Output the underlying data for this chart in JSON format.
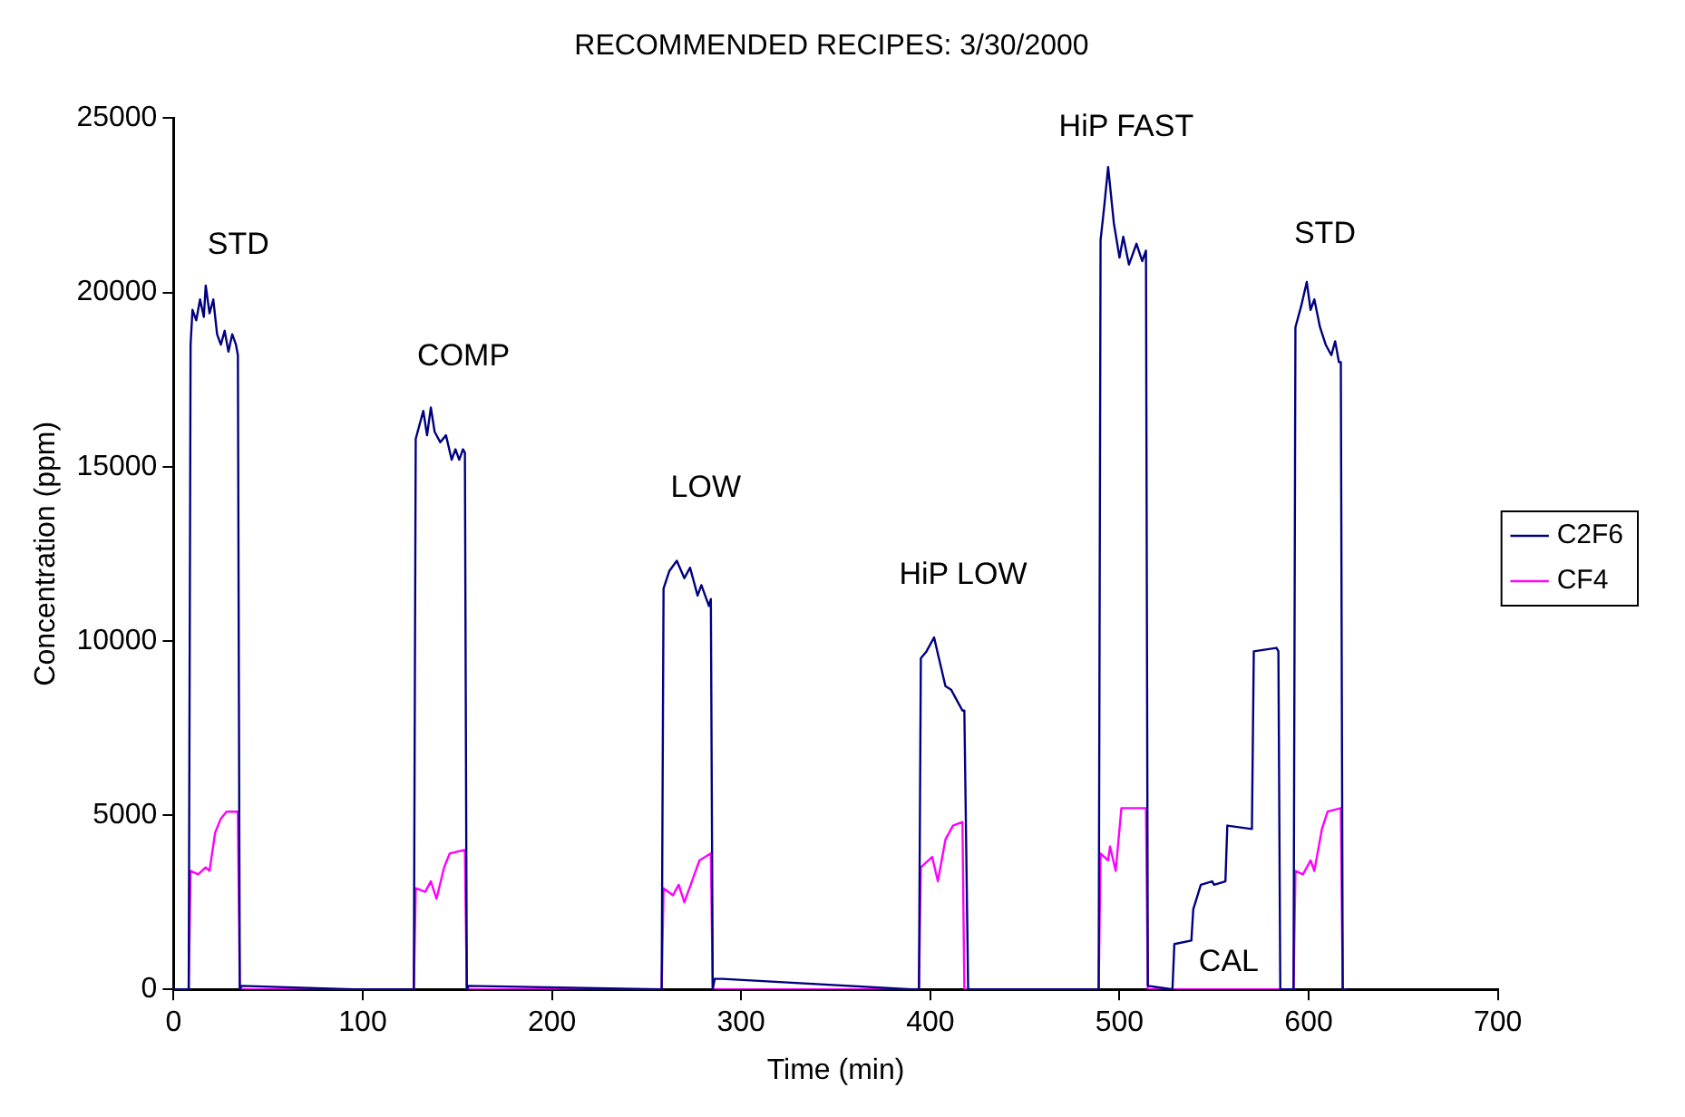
{
  "chart_data": {
    "type": "line",
    "title": "RECOMMENDED RECIPES: 3/30/2000",
    "xlabel": "Time (min)",
    "ylabel": "Concentration (ppm)",
    "xlim": [
      0,
      700
    ],
    "xticks": [
      0,
      100,
      200,
      300,
      400,
      500,
      600,
      700
    ],
    "ylim": [
      0,
      25000
    ],
    "yticks": [
      0,
      5000,
      10000,
      15000,
      20000,
      25000
    ],
    "grid": false,
    "legend": "right",
    "marker": "none",
    "line_style": "solid",
    "annotations": [
      {
        "text": "STD",
        "x": 17,
        "y": 20200
      },
      {
        "text": "COMP",
        "x": 136,
        "y": 16700
      },
      {
        "text": "LOW",
        "x": 266,
        "y": 12300
      },
      {
        "text": "HiP LOW",
        "x": 402,
        "y": 10100
      },
      {
        "text": "HiP FAST",
        "x": 494,
        "y": 23600
      },
      {
        "text": "CAL",
        "x": 529,
        "y": 1300
      },
      {
        "text": "STD",
        "x": 599,
        "y": 20300
      }
    ],
    "series": [
      {
        "name": "C2F6",
        "color": "#000080",
        "x": [
          0,
          5,
          6,
          8,
          9,
          10,
          12,
          14,
          16,
          17,
          19,
          21,
          23,
          25,
          27,
          29,
          31,
          33,
          34,
          35,
          36,
          95,
          98,
          101,
          127,
          128,
          130,
          132,
          134,
          136,
          138,
          141,
          144,
          147,
          149,
          151,
          153,
          154,
          155,
          156,
          257,
          258,
          259,
          262,
          266,
          270,
          273,
          277,
          279,
          283,
          284,
          285,
          286,
          290,
          390,
          393,
          394,
          395,
          398,
          402,
          405,
          408,
          411,
          415,
          417,
          418,
          420,
          485,
          488,
          489,
          490,
          492,
          494,
          497,
          500,
          502,
          505,
          509,
          512,
          514,
          515,
          528,
          529,
          538,
          539,
          543,
          549,
          550,
          556,
          557,
          570,
          571,
          583,
          584,
          585,
          590,
          591,
          592,
          593,
          596,
          599,
          601,
          603,
          606,
          609,
          612,
          614,
          616,
          617,
          618,
          620
        ],
        "values": [
          0,
          0,
          0,
          0,
          18500,
          19500,
          19200,
          19800,
          19300,
          20200,
          19400,
          19800,
          18800,
          18500,
          18900,
          18300,
          18800,
          18500,
          18200,
          0,
          100,
          0,
          0,
          0,
          0,
          15800,
          16200,
          16600,
          15900,
          16700,
          16000,
          15700,
          15900,
          15200,
          15500,
          15200,
          15500,
          15400,
          0,
          100,
          0,
          0,
          11500,
          12000,
          12300,
          11800,
          12100,
          11300,
          11600,
          11000,
          11200,
          0,
          300,
          300,
          0,
          0,
          0,
          9500,
          9700,
          10100,
          9400,
          8700,
          8600,
          8200,
          8000,
          8000,
          0,
          0,
          0,
          0,
          21500,
          22500,
          23600,
          22000,
          21000,
          21600,
          20800,
          21400,
          20900,
          21200,
          100,
          0,
          1300,
          1400,
          2300,
          3000,
          3100,
          3000,
          3100,
          4700,
          4600,
          9700,
          9800,
          9700,
          0,
          0,
          0,
          0,
          19000,
          19600,
          20300,
          19500,
          19800,
          19000,
          18500,
          18200,
          18600,
          18000,
          18000,
          0,
          0
        ]
      },
      {
        "name": "CF4",
        "color": "#ff00ff",
        "x": [
          0,
          8,
          9,
          13,
          17,
          19,
          22,
          25,
          28,
          34,
          35,
          127,
          128,
          133,
          136,
          139,
          143,
          146,
          154,
          155,
          258,
          259,
          264,
          267,
          270,
          274,
          278,
          284,
          285,
          394,
          395,
          401,
          404,
          408,
          412,
          417,
          418,
          489,
          490,
          494,
          495,
          498,
          501,
          514,
          515,
          592,
          593,
          597,
          601,
          603,
          607,
          610,
          617,
          618,
          620
        ],
        "values": [
          0,
          0,
          3400,
          3300,
          3500,
          3400,
          4500,
          4900,
          5100,
          5100,
          0,
          0,
          2900,
          2800,
          3100,
          2600,
          3500,
          3900,
          4000,
          0,
          0,
          2900,
          2700,
          3000,
          2500,
          3100,
          3700,
          3900,
          0,
          0,
          3500,
          3800,
          3100,
          4300,
          4700,
          4800,
          0,
          0,
          3900,
          3700,
          4100,
          3400,
          5200,
          5200,
          0,
          0,
          3400,
          3300,
          3700,
          3400,
          4600,
          5100,
          5200,
          0,
          0
        ]
      }
    ]
  }
}
